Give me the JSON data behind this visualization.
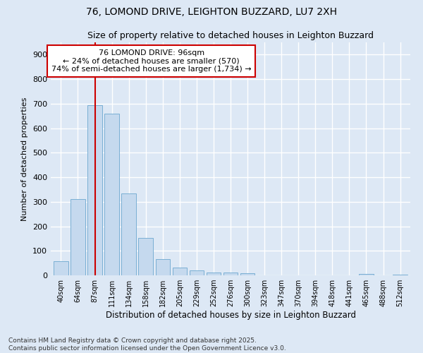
{
  "title_line1": "76, LOMOND DRIVE, LEIGHTON BUZZARD, LU7 2XH",
  "title_line2": "Size of property relative to detached houses in Leighton Buzzard",
  "xlabel": "Distribution of detached houses by size in Leighton Buzzard",
  "ylabel": "Number of detached properties",
  "categories": [
    "40sqm",
    "64sqm",
    "87sqm",
    "111sqm",
    "134sqm",
    "158sqm",
    "182sqm",
    "205sqm",
    "229sqm",
    "252sqm",
    "276sqm",
    "300sqm",
    "323sqm",
    "347sqm",
    "370sqm",
    "394sqm",
    "418sqm",
    "441sqm",
    "465sqm",
    "488sqm",
    "512sqm"
  ],
  "values": [
    58,
    312,
    695,
    658,
    335,
    152,
    65,
    32,
    20,
    12,
    12,
    10,
    0,
    0,
    0,
    0,
    0,
    0,
    5,
    0,
    2
  ],
  "bar_color": "#c5d9ee",
  "bar_edge_color": "#7aafd4",
  "vline_x_index": 2,
  "vline_color": "#cc0000",
  "annotation_text": "76 LOMOND DRIVE: 96sqm\n← 24% of detached houses are smaller (570)\n74% of semi-detached houses are larger (1,734) →",
  "annotation_box_color": "#ffffff",
  "annotation_box_edge_color": "#cc0000",
  "ylim": [
    0,
    950
  ],
  "yticks": [
    0,
    100,
    200,
    300,
    400,
    500,
    600,
    700,
    800,
    900
  ],
  "footnote": "Contains HM Land Registry data © Crown copyright and database right 2025.\nContains public sector information licensed under the Open Government Licence v3.0.",
  "bg_color": "#dde8f5",
  "plot_bg_color": "#dde8f5",
  "grid_color": "#ffffff",
  "title_fontsize": 10,
  "subtitle_fontsize": 9,
  "footnote_fontsize": 6.5
}
